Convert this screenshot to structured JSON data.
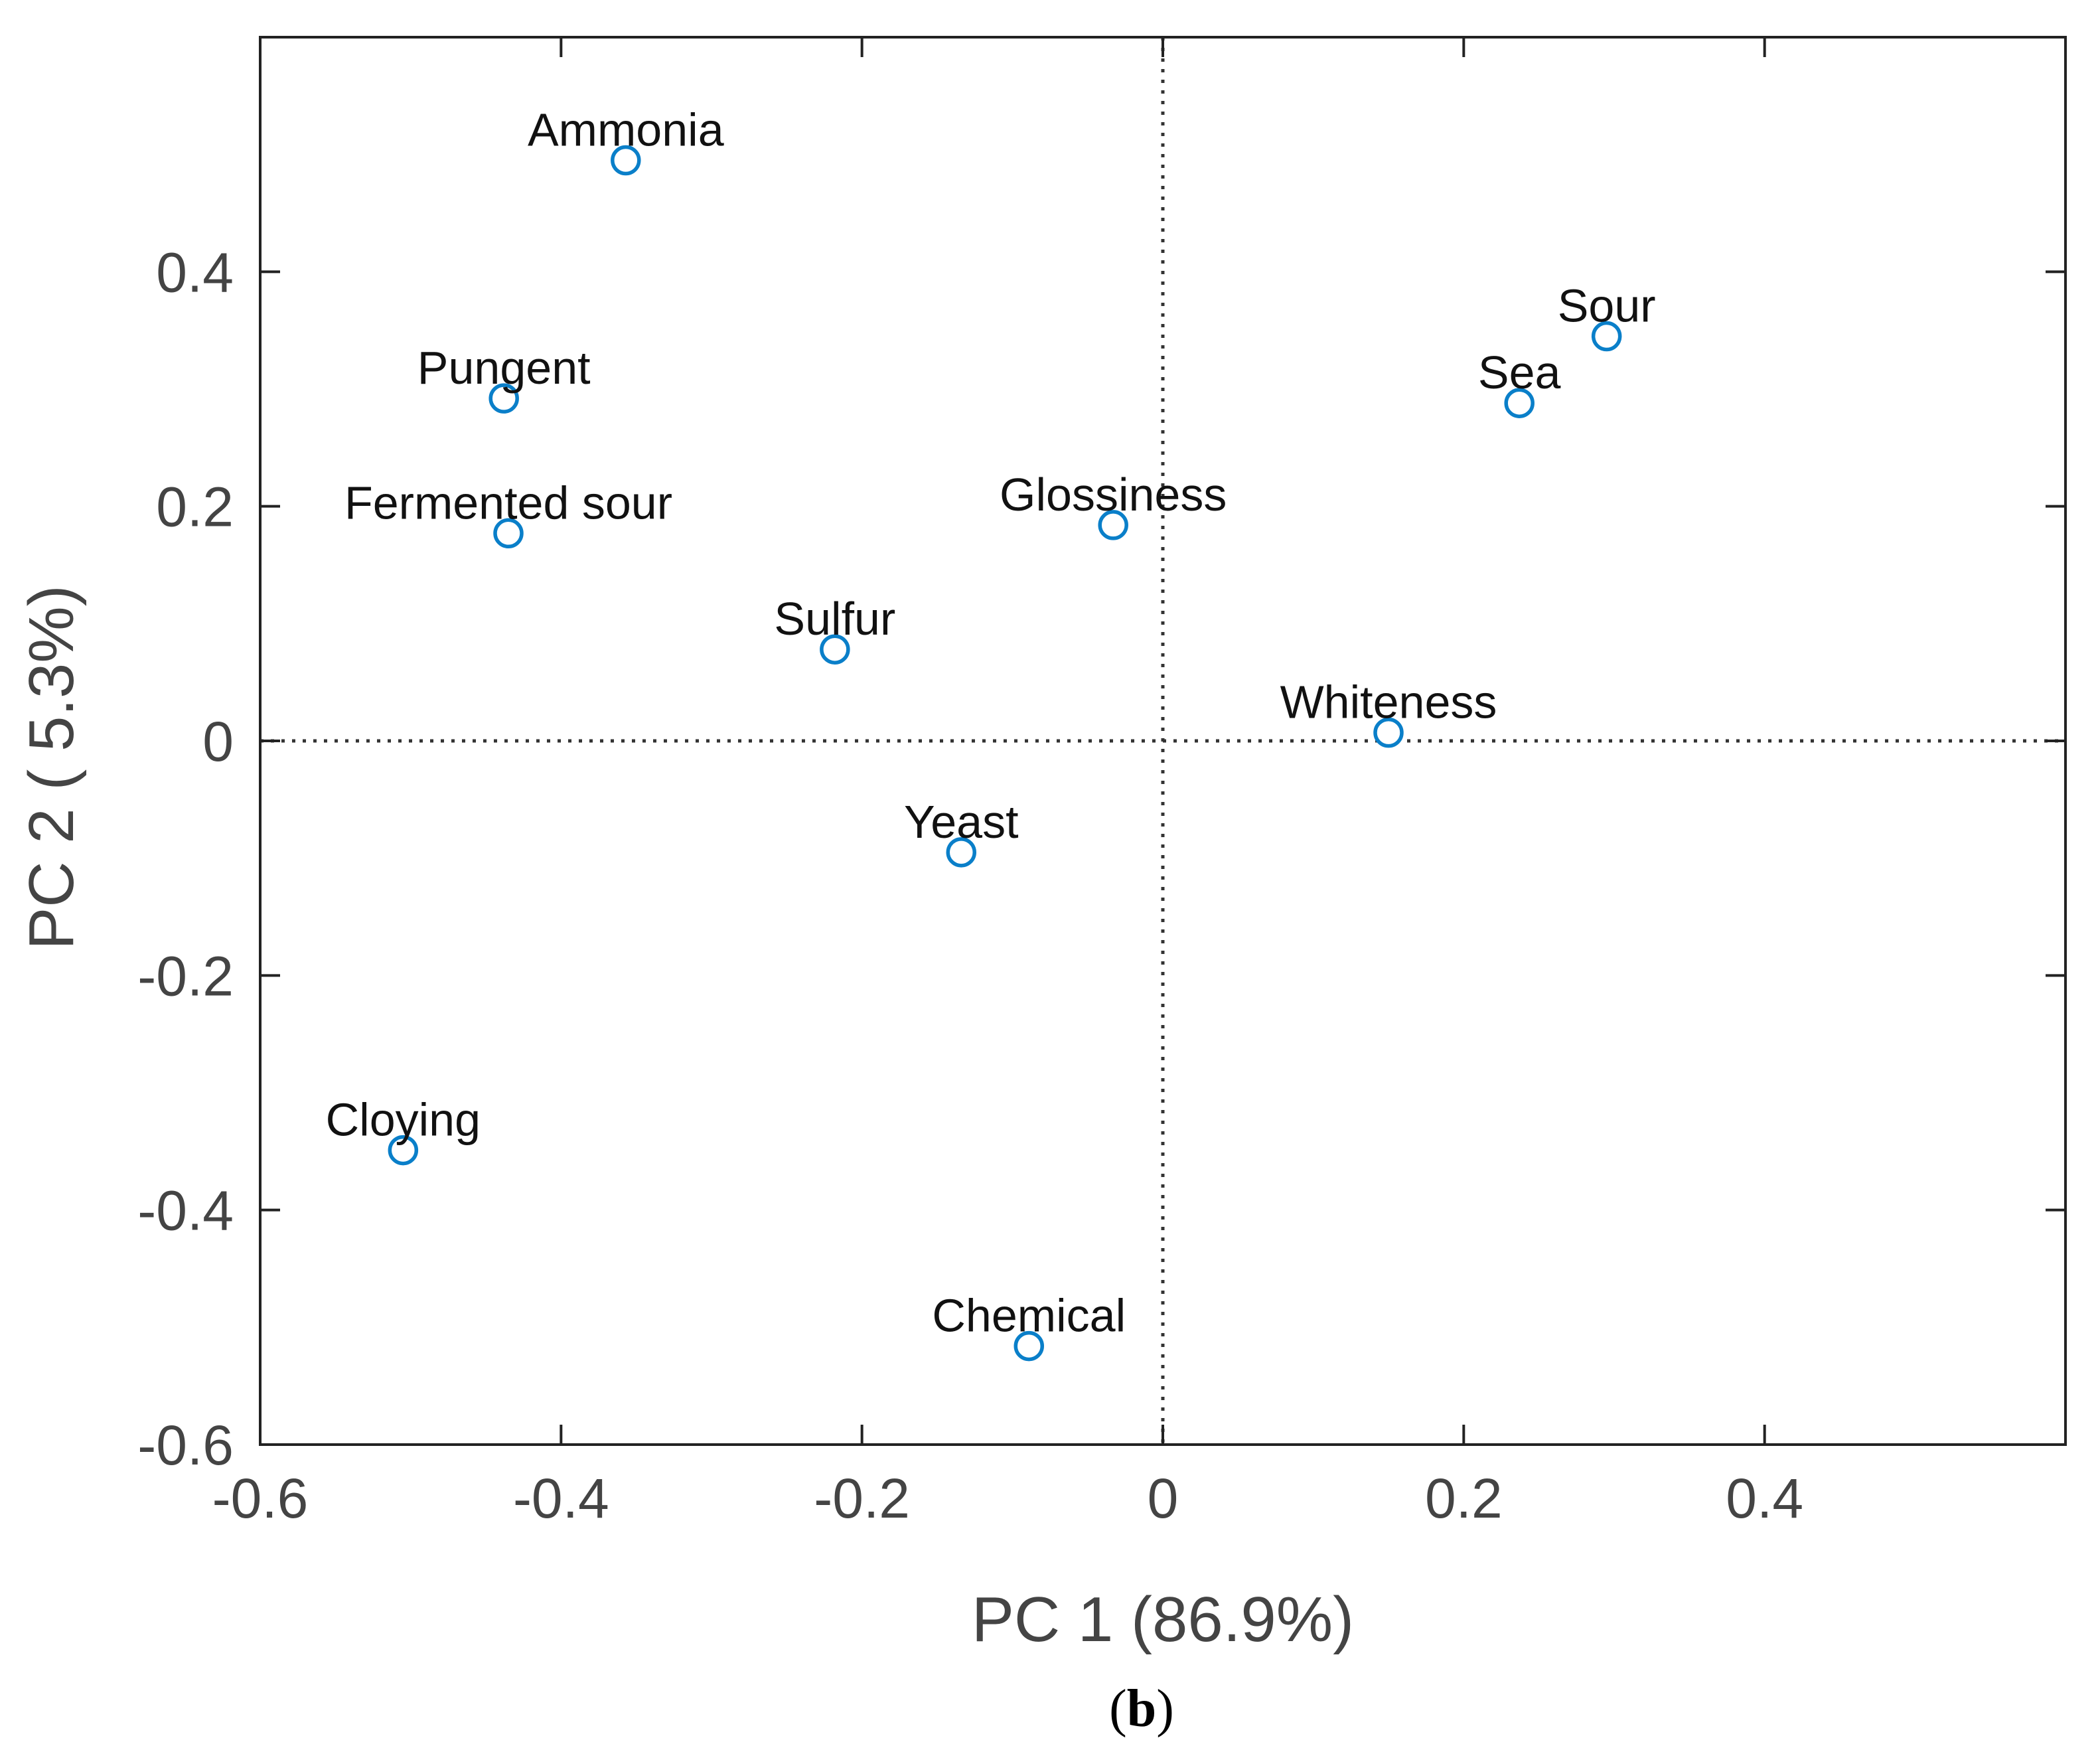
{
  "chart_data": {
    "type": "scatter",
    "title": "",
    "xlabel": "PC 1 (86.9%)",
    "ylabel": "PC 2 ( 5.3%)",
    "xlim": [
      -0.6,
      0.6
    ],
    "ylim": [
      -0.6,
      0.6
    ],
    "xticks": [
      -0.6,
      -0.4,
      -0.2,
      0,
      0.2,
      0.4
    ],
    "yticks": [
      -0.6,
      -0.4,
      -0.2,
      0,
      0.2,
      0.4
    ],
    "xtick_labels": [
      "-0.6",
      "-0.4",
      "-0.2",
      "0",
      "0.2",
      "0.4"
    ],
    "ytick_labels": [
      "-0.6",
      "-0.4",
      "-0.2",
      "0",
      "0.2",
      "0.4"
    ],
    "grid": false,
    "zero_lines": true,
    "marker_color": "#0a7fc9",
    "points": [
      {
        "label": "Ammonia",
        "x": -0.357,
        "y": 0.495
      },
      {
        "label": "Pungent",
        "x": -0.438,
        "y": 0.292
      },
      {
        "label": "Fermented sour",
        "x": -0.435,
        "y": 0.177
      },
      {
        "label": "Sulfur",
        "x": -0.218,
        "y": 0.078
      },
      {
        "label": "Glossiness",
        "x": -0.033,
        "y": 0.184
      },
      {
        "label": "Sour",
        "x": 0.295,
        "y": 0.345
      },
      {
        "label": "Sea",
        "x": 0.237,
        "y": 0.288
      },
      {
        "label": "Whiteness",
        "x": 0.15,
        "y": 0.007
      },
      {
        "label": "Yeast",
        "x": -0.134,
        "y": -0.095
      },
      {
        "label": "Cloying",
        "x": -0.505,
        "y": -0.349
      },
      {
        "label": "Chemical",
        "x": -0.089,
        "y": -0.516
      }
    ]
  },
  "caption": {
    "open": "(",
    "letter": "b",
    "close": ")"
  }
}
